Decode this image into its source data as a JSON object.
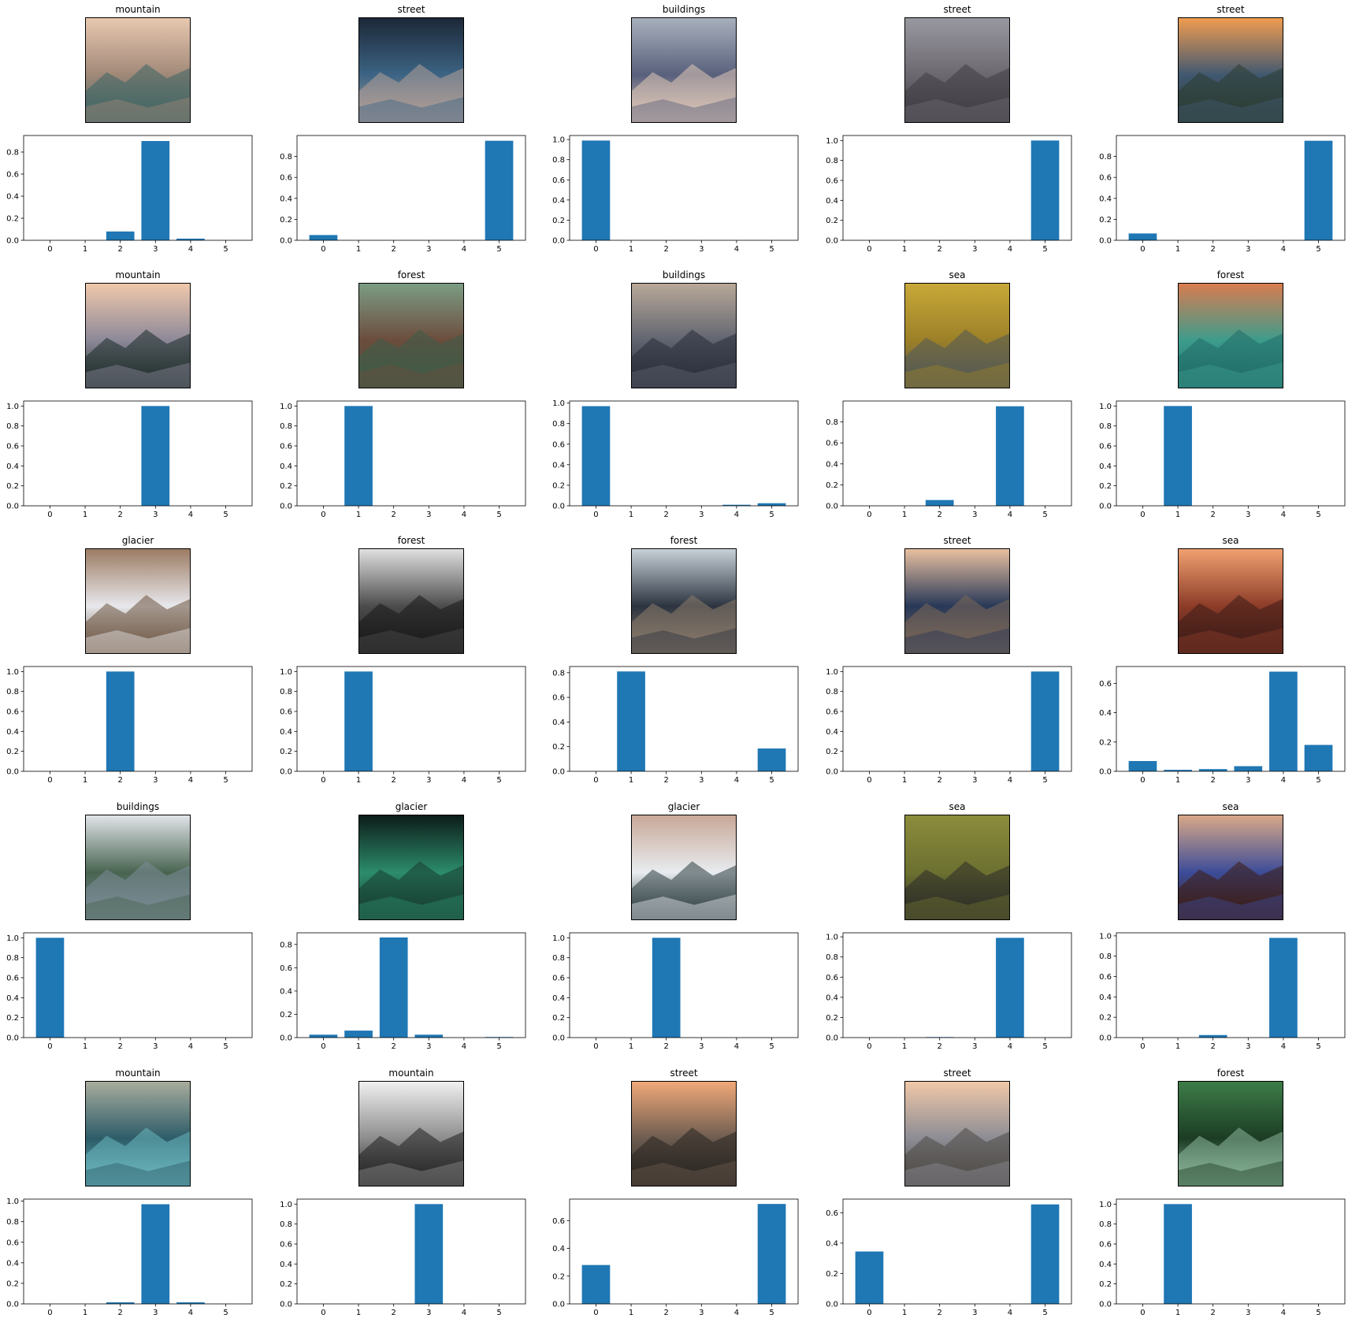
{
  "chart_data": [
    {
      "type": "bar",
      "title": "mountain",
      "categories": [
        "0",
        "1",
        "2",
        "3",
        "4",
        "5"
      ],
      "values": [
        0,
        0,
        0.08,
        0.9,
        0.015,
        0
      ],
      "ylim": [
        0,
        0.95
      ],
      "yticks": [
        0.0,
        0.2,
        0.4,
        0.6,
        0.8
      ],
      "thumbnail": "snowy-mountain-slope",
      "palette": [
        "#e8c8b0",
        "#a08878",
        "#3c6464"
      ]
    },
    {
      "type": "bar",
      "title": "street",
      "categories": [
        "0",
        "1",
        "2",
        "3",
        "4",
        "5"
      ],
      "values": [
        0.05,
        0,
        0,
        0,
        0,
        0.95
      ],
      "ylim": [
        0,
        1.0
      ],
      "yticks": [
        0.0,
        0.2,
        0.4,
        0.6,
        0.8
      ],
      "thumbnail": "night-city-street",
      "palette": [
        "#1c2838",
        "#3c6484",
        "#b4a098"
      ]
    },
    {
      "type": "bar",
      "title": "buildings",
      "categories": [
        "0",
        "1",
        "2",
        "3",
        "4",
        "5"
      ],
      "values": [
        0.99,
        0,
        0,
        0,
        0,
        0
      ],
      "ylim": [
        0,
        1.04
      ],
      "yticks": [
        0.0,
        0.2,
        0.4,
        0.6,
        0.8,
        1.0
      ],
      "thumbnail": "city-buildings-view",
      "palette": [
        "#a8b0bc",
        "#58607c",
        "#e0c8b8"
      ]
    },
    {
      "type": "bar",
      "title": "street",
      "categories": [
        "0",
        "1",
        "2",
        "3",
        "4",
        "5"
      ],
      "values": [
        0,
        0,
        0,
        0,
        0,
        1.0
      ],
      "ylim": [
        0,
        1.05
      ],
      "yticks": [
        0.0,
        0.2,
        0.4,
        0.6,
        0.8,
        1.0
      ],
      "thumbnail": "sidewalk-with-stroller",
      "palette": [
        "#9898a0",
        "#6c6870",
        "#403c44"
      ]
    },
    {
      "type": "bar",
      "title": "street",
      "categories": [
        "0",
        "1",
        "2",
        "3",
        "4",
        "5"
      ],
      "values": [
        0.065,
        0,
        0,
        0,
        0,
        0.95
      ],
      "ylim": [
        0,
        1.0
      ],
      "yticks": [
        0.0,
        0.2,
        0.4,
        0.6,
        0.8
      ],
      "thumbnail": "sunset-doorway",
      "palette": [
        "#f09c50",
        "#405870",
        "#2c3c30"
      ]
    },
    {
      "type": "bar",
      "title": "mountain",
      "categories": [
        "0",
        "1",
        "2",
        "3",
        "4",
        "5"
      ],
      "values": [
        0,
        0,
        0,
        1.0,
        0,
        0
      ],
      "ylim": [
        0,
        1.05
      ],
      "yticks": [
        0.0,
        0.2,
        0.4,
        0.6,
        0.8,
        1.0
      ],
      "thumbnail": "alpine-mountain",
      "palette": [
        "#f0c8ac",
        "#8c8898",
        "#1c2c28"
      ]
    },
    {
      "type": "bar",
      "title": "forest",
      "categories": [
        "0",
        "1",
        "2",
        "3",
        "4",
        "5"
      ],
      "values": [
        0,
        1.0,
        0,
        0,
        0,
        0
      ],
      "ylim": [
        0,
        1.05
      ],
      "yticks": [
        0.0,
        0.2,
        0.4,
        0.6,
        0.8,
        1.0
      ],
      "thumbnail": "forest-trail",
      "palette": [
        "#7c9c84",
        "#6c4c3c",
        "#3c5c48"
      ]
    },
    {
      "type": "bar",
      "title": "buildings",
      "categories": [
        "0",
        "1",
        "2",
        "3",
        "4",
        "5"
      ],
      "values": [
        0.97,
        0,
        0,
        0,
        0.01,
        0.025
      ],
      "ylim": [
        0,
        1.02
      ],
      "yticks": [
        0.0,
        0.2,
        0.4,
        0.6,
        0.8,
        1.0
      ],
      "thumbnail": "city-skyline",
      "palette": [
        "#b8a898",
        "#606470",
        "#282c38"
      ]
    },
    {
      "type": "bar",
      "title": "sea",
      "categories": [
        "0",
        "1",
        "2",
        "3",
        "4",
        "5"
      ],
      "values": [
        0,
        0,
        0.055,
        0,
        0.95,
        0
      ],
      "ylim": [
        0,
        1.0
      ],
      "yticks": [
        0.0,
        0.2,
        0.4,
        0.6,
        0.8
      ],
      "thumbnail": "dolphin-in-water",
      "palette": [
        "#c8a838",
        "#9c8028",
        "#505858"
      ]
    },
    {
      "type": "bar",
      "title": "forest",
      "categories": [
        "0",
        "1",
        "2",
        "3",
        "4",
        "5"
      ],
      "values": [
        0,
        1.0,
        0,
        0,
        0,
        0
      ],
      "ylim": [
        0,
        1.05
      ],
      "yticks": [
        0.0,
        0.2,
        0.4,
        0.6,
        0.8,
        1.0
      ],
      "thumbnail": "forest-canopy",
      "palette": [
        "#d87c50",
        "#3c9c8c",
        "#206c68"
      ]
    },
    {
      "type": "bar",
      "title": "glacier",
      "categories": [
        "0",
        "1",
        "2",
        "3",
        "4",
        "5"
      ],
      "values": [
        0,
        0,
        1.0,
        0,
        0,
        0
      ],
      "ylim": [
        0,
        1.05
      ],
      "yticks": [
        0.0,
        0.2,
        0.4,
        0.6,
        0.8,
        1.0
      ],
      "thumbnail": "glacier-bay",
      "palette": [
        "#9c7c64",
        "#e8e8ec",
        "#6c5440"
      ]
    },
    {
      "type": "bar",
      "title": "forest",
      "categories": [
        "0",
        "1",
        "2",
        "3",
        "4",
        "5"
      ],
      "values": [
        0,
        1.0,
        0,
        0,
        0,
        0
      ],
      "ylim": [
        0,
        1.05
      ],
      "yticks": [
        0.0,
        0.2,
        0.4,
        0.6,
        0.8,
        1.0
      ],
      "thumbnail": "bare-tree-alley",
      "palette": [
        "#e0e0e0",
        "#4c4c4c",
        "#181818"
      ]
    },
    {
      "type": "bar",
      "title": "forest",
      "categories": [
        "0",
        "1",
        "2",
        "3",
        "4",
        "5"
      ],
      "values": [
        0,
        0.81,
        0,
        0,
        0,
        0.185
      ],
      "ylim": [
        0,
        0.85
      ],
      "yticks": [
        0.0,
        0.2,
        0.4,
        0.6,
        0.8
      ],
      "thumbnail": "narrow-alley",
      "palette": [
        "#c8d0d8",
        "#2c3440",
        "#8c7c6c"
      ]
    },
    {
      "type": "bar",
      "title": "street",
      "categories": [
        "0",
        "1",
        "2",
        "3",
        "4",
        "5"
      ],
      "values": [
        0,
        0,
        0,
        0,
        0,
        1.0
      ],
      "ylim": [
        0,
        1.05
      ],
      "yticks": [
        0.0,
        0.2,
        0.4,
        0.6,
        0.8,
        1.0
      ],
      "thumbnail": "church-tower-street",
      "palette": [
        "#e8c0a0",
        "#283858",
        "#7c6858"
      ]
    },
    {
      "type": "bar",
      "title": "sea",
      "categories": [
        "0",
        "1",
        "2",
        "3",
        "4",
        "5"
      ],
      "values": [
        0.07,
        0.01,
        0.015,
        0.035,
        0.68,
        0.18
      ],
      "ylim": [
        0,
        0.715
      ],
      "yticks": [
        0.0,
        0.2,
        0.4,
        0.6
      ],
      "thumbnail": "sailboat-at-sea",
      "palette": [
        "#f0a070",
        "#8c3c28",
        "#3c1c18"
      ]
    },
    {
      "type": "bar",
      "title": "buildings",
      "categories": [
        "0",
        "1",
        "2",
        "3",
        "4",
        "5"
      ],
      "values": [
        1.0,
        0,
        0,
        0,
        0,
        0
      ],
      "ylim": [
        0,
        1.05
      ],
      "yticks": [
        0.0,
        0.2,
        0.4,
        0.6,
        0.8,
        1.0
      ],
      "thumbnail": "white-house",
      "palette": [
        "#e0e4e8",
        "#486450",
        "#7c8c98"
      ]
    },
    {
      "type": "bar",
      "title": "glacier",
      "categories": [
        "0",
        "1",
        "2",
        "3",
        "4",
        "5"
      ],
      "values": [
        0.025,
        0.06,
        0.86,
        0.025,
        0,
        0.005
      ],
      "ylim": [
        0,
        0.9
      ],
      "yticks": [
        0.0,
        0.2,
        0.4,
        0.6,
        0.8
      ],
      "thumbnail": "pine-branch",
      "palette": [
        "#0c1c18",
        "#2c8c6c",
        "#183c30"
      ]
    },
    {
      "type": "bar",
      "title": "glacier",
      "categories": [
        "0",
        "1",
        "2",
        "3",
        "4",
        "5"
      ],
      "values": [
        0,
        0,
        1.0,
        0,
        0,
        0
      ],
      "ylim": [
        0,
        1.05
      ],
      "yticks": [
        0.0,
        0.2,
        0.4,
        0.6,
        0.8,
        1.0
      ],
      "thumbnail": "snowy-valley",
      "palette": [
        "#c8a898",
        "#e8ecf0",
        "#2c3c40"
      ]
    },
    {
      "type": "bar",
      "title": "sea",
      "categories": [
        "0",
        "1",
        "2",
        "3",
        "4",
        "5"
      ],
      "values": [
        0,
        0,
        0.005,
        0,
        0.99,
        0
      ],
      "ylim": [
        0,
        1.04
      ],
      "yticks": [
        0.0,
        0.2,
        0.4,
        0.6,
        0.8,
        1.0
      ],
      "thumbnail": "rocky-shore",
      "palette": [
        "#8c8c3c",
        "#6c7030",
        "#2c2c28"
      ]
    },
    {
      "type": "bar",
      "title": "sea",
      "categories": [
        "0",
        "1",
        "2",
        "3",
        "4",
        "5"
      ],
      "values": [
        0,
        0,
        0.025,
        0,
        0.98,
        0
      ],
      "ylim": [
        0,
        1.03
      ],
      "yticks": [
        0.0,
        0.2,
        0.4,
        0.6,
        0.8,
        1.0
      ],
      "thumbnail": "dark-beach",
      "palette": [
        "#d8a888",
        "#3c4c98",
        "#3c1c10"
      ]
    },
    {
      "type": "bar",
      "title": "mountain",
      "categories": [
        "0",
        "1",
        "2",
        "3",
        "4",
        "5"
      ],
      "values": [
        0,
        0,
        0.015,
        0.97,
        0.015,
        0
      ],
      "ylim": [
        0,
        1.02
      ],
      "yticks": [
        0.0,
        0.2,
        0.4,
        0.6,
        0.8,
        1.0
      ],
      "thumbnail": "shoreline-edge",
      "palette": [
        "#a8ac9c",
        "#2c5c68",
        "#6cb8c0"
      ]
    },
    {
      "type": "bar",
      "title": "mountain",
      "categories": [
        "0",
        "1",
        "2",
        "3",
        "4",
        "5"
      ],
      "values": [
        0,
        0,
        0,
        1.0,
        0,
        0
      ],
      "ylim": [
        0,
        1.05
      ],
      "yticks": [
        0.0,
        0.2,
        0.4,
        0.6,
        0.8,
        1.0
      ],
      "thumbnail": "bw-mountain-clouds",
      "palette": [
        "#f0f0f0",
        "#8c8c8c",
        "#202020"
      ]
    },
    {
      "type": "bar",
      "title": "street",
      "categories": [
        "0",
        "1",
        "2",
        "3",
        "4",
        "5"
      ],
      "values": [
        0.28,
        0,
        0,
        0,
        0,
        0.72
      ],
      "ylim": [
        0,
        0.755
      ],
      "yticks": [
        0.0,
        0.2,
        0.4,
        0.6
      ],
      "thumbnail": "skyscrapers-upward",
      "palette": [
        "#f0a878",
        "#6c5c50",
        "#282420"
      ]
    },
    {
      "type": "bar",
      "title": "street",
      "categories": [
        "0",
        "1",
        "2",
        "3",
        "4",
        "5"
      ],
      "values": [
        0.345,
        0,
        0,
        0,
        0,
        0.655
      ],
      "ylim": [
        0,
        0.69
      ],
      "yticks": [
        0.0,
        0.2,
        0.4,
        0.6
      ],
      "thumbnail": "city-avenue",
      "palette": [
        "#f0c8a8",
        "#8c8c94",
        "#4c4844"
      ]
    },
    {
      "type": "bar",
      "title": "forest",
      "categories": [
        "0",
        "1",
        "2",
        "3",
        "4",
        "5"
      ],
      "values": [
        0,
        1.0,
        0,
        0,
        0,
        0
      ],
      "ylim": [
        0,
        1.05
      ],
      "yticks": [
        0.0,
        0.2,
        0.4,
        0.6,
        0.8,
        1.0
      ],
      "thumbnail": "green-forest",
      "palette": [
        "#3c7c48",
        "#1c3c24",
        "#8cb89c"
      ]
    }
  ]
}
